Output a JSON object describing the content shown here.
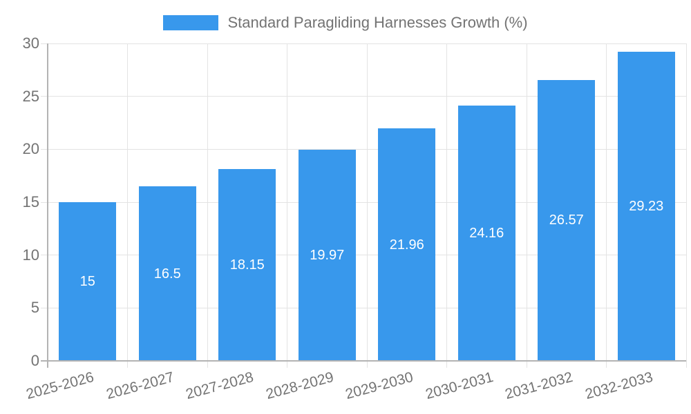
{
  "legend": {
    "label": "Standard Paragliding Harnesses Growth (%)"
  },
  "chart_data": {
    "type": "bar",
    "title": "Standard Paragliding Harnesses Growth (%)",
    "categories": [
      "2025-2026",
      "2026-2027",
      "2027-2028",
      "2028-2029",
      "2029-2030",
      "2030-2031",
      "2031-2032",
      "2032-2033"
    ],
    "values": [
      15,
      16.5,
      18.15,
      19.97,
      21.96,
      24.16,
      26.57,
      29.23
    ],
    "value_labels": [
      "15",
      "16.5",
      "18.15",
      "19.97",
      "21.96",
      "24.16",
      "26.57",
      "29.23"
    ],
    "xlabel": "",
    "ylabel": "",
    "ylim": [
      0,
      30
    ],
    "yticks": [
      0,
      5,
      10,
      15,
      20,
      25,
      30
    ],
    "ytick_labels": [
      "0",
      "5",
      "10",
      "15",
      "20",
      "25",
      "30"
    ],
    "grid": true,
    "legend_position": "top-center",
    "x_label_rotation_deg": -15,
    "colors": {
      "bar": "#3898ec",
      "grid": "#e3e3e3",
      "axis": "#b3b3b3",
      "text": "#737373",
      "value_label": "#ffffff",
      "background": "#ffffff"
    }
  }
}
